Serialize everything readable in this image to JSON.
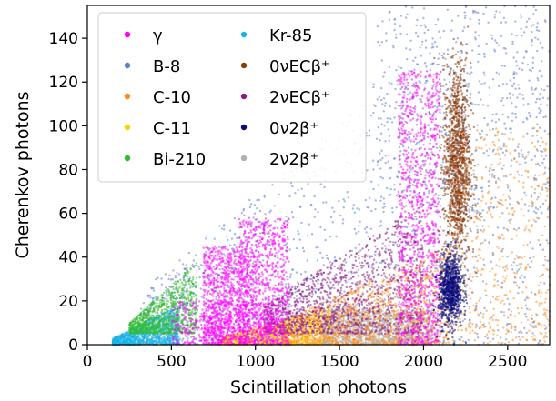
{
  "chart_data": {
    "type": "scatter",
    "xlabel": "Scintillation photons",
    "ylabel": "Cherenkov photons",
    "xlim": [
      0,
      2750
    ],
    "ylim": [
      0,
      155
    ],
    "xticks": [
      "0",
      "500",
      "1000",
      "1500",
      "2000",
      "2500"
    ],
    "yticks": [
      "0",
      "20",
      "40",
      "60",
      "80",
      "100",
      "120",
      "140"
    ],
    "grid": false,
    "legend_position": "top-left",
    "series": [
      {
        "name": "γ",
        "color": "#ff00ff",
        "clusters": [
          {
            "x": [
              690,
              960
            ],
            "y": [
              0,
              45
            ],
            "n": 900
          },
          {
            "x": [
              900,
              1200
            ],
            "y": [
              0,
              58
            ],
            "n": 900
          },
          {
            "x": [
              1850,
              2100
            ],
            "y": [
              0,
              125
            ],
            "n": 1100
          },
          {
            "x": [
              500,
              1150
            ],
            "y": [
              0,
              20
            ],
            "n": 500
          }
        ]
      },
      {
        "name": "B-8",
        "color": "#5f7fd0",
        "clusters": [
          {
            "x": [
              300,
              2750
            ],
            "y": [
              0,
              155
            ],
            "n": 1400,
            "diag": 0.065
          },
          {
            "x": [
              1700,
              2750
            ],
            "y": [
              60,
              155
            ],
            "n": 500
          }
        ]
      },
      {
        "name": "C-10",
        "color": "#ff8c1a",
        "clusters": [
          {
            "x": [
              1150,
              2150
            ],
            "y": [
              0,
              70
            ],
            "n": 1400,
            "diag": 0.035
          },
          {
            "x": [
              2150,
              2750
            ],
            "y": [
              0,
              100
            ],
            "n": 500
          }
        ]
      },
      {
        "name": "C-11",
        "color": "#ffd400",
        "clusters": [
          {
            "x": [
              800,
              1450
            ],
            "y": [
              0,
              25
            ],
            "n": 1100,
            "diag": 0.02
          }
        ]
      },
      {
        "name": "Bi-210",
        "color": "#33bb33",
        "clusters": [
          {
            "x": [
              250,
              650
            ],
            "y": [
              5,
              38
            ],
            "n": 900,
            "diag": 0.07
          }
        ]
      },
      {
        "name": "Kr-85",
        "color": "#1ab3e6",
        "clusters": [
          {
            "x": [
              150,
              550
            ],
            "y": [
              0,
              18
            ],
            "n": 1100,
            "diag": 0.04
          }
        ]
      },
      {
        "name": "0νECβ⁺",
        "color": "#8b3a0e",
        "clusters": [
          {
            "x": [
              2100,
              2300
            ],
            "y": [
              25,
              140
            ],
            "n": 1300,
            "ellipse": true
          }
        ]
      },
      {
        "name": "2νECβ⁺",
        "color": "#8b1a8b",
        "clusters": [
          {
            "x": [
              1050,
              2000
            ],
            "y": [
              5,
              90
            ],
            "n": 1300,
            "diag": 0.05
          }
        ]
      },
      {
        "name": "0ν2β⁺",
        "color": "#0b0b7a",
        "clusters": [
          {
            "x": [
              2070,
              2250
            ],
            "y": [
              5,
              45
            ],
            "n": 900,
            "ellipse": true
          }
        ]
      },
      {
        "name": "2ν2β⁺",
        "color": "#b0b0b0",
        "clusters": [
          {
            "x": [
              1400,
              2050
            ],
            "y": [
              0,
              16
            ],
            "n": 1300
          }
        ]
      }
    ]
  }
}
